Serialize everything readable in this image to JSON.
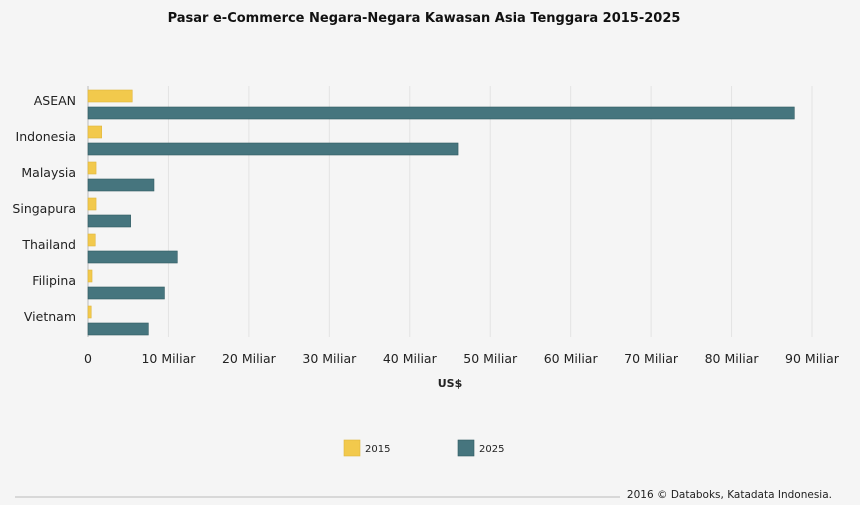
{
  "chart_data": {
    "type": "bar",
    "orientation": "horizontal",
    "title": "Pasar e-Commerce Negara-Negara Kawasan Asia Tenggara 2015-2025",
    "categories": [
      "ASEAN",
      "Indonesia",
      "Malaysia",
      "Singapura",
      "Thailand",
      "Filipina",
      "Vietnam"
    ],
    "series": [
      {
        "name": "2015",
        "color": "#f2c94c",
        "values": [
          5.5,
          1.7,
          1.0,
          1.0,
          0.9,
          0.5,
          0.4
        ]
      },
      {
        "name": "2025",
        "color": "#46757e",
        "values": [
          87.8,
          46.0,
          8.2,
          5.3,
          11.1,
          9.5,
          7.5
        ]
      }
    ],
    "xlabel": "US$",
    "xlim": [
      0,
      90
    ],
    "xticks": [
      0,
      10,
      20,
      30,
      40,
      50,
      60,
      70,
      80,
      90
    ],
    "xtick_labels": [
      "0",
      "10 Miliar",
      "20 Miliar",
      "30 Miliar",
      "40 Miliar",
      "50 Miliar",
      "60 Miliar",
      "70 Miliar",
      "80 Miliar",
      "90 Miliar"
    ],
    "grid": true,
    "legend_position": "bottom-center"
  },
  "footer": {
    "source": "2016 © Databoks, Katadata Indonesia."
  }
}
